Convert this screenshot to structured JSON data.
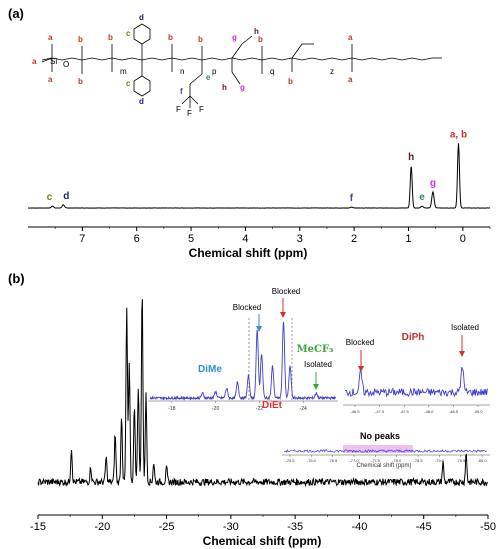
{
  "panel_a": {
    "label": "(a)",
    "structure": {
      "atom_labels": [
        "Si",
        "O",
        "m",
        "n",
        "p",
        "q",
        "z",
        "F"
      ],
      "position_letters": [
        "a",
        "b",
        "c",
        "d",
        "e",
        "f",
        "g",
        "h"
      ]
    }
  },
  "panel_b": {
    "label": "(b)"
  },
  "colors": {
    "a": "#c0392b",
    "b": "#c0392b",
    "c": "#808000",
    "d": "#1a237e",
    "e": "#2e8b57",
    "f": "#4b3f9e",
    "g": "#cc33cc",
    "h": "#5b1a1a",
    "dime": "#2f8fd0",
    "diet": "#e03030",
    "mecf3": "#3aa63a",
    "diph": "#c03030",
    "spectrum_blue": "#3f3fd0",
    "arrow_red": "#d03030",
    "arrow_blue": "#2f8fd0",
    "arrow_green": "#3aa63a"
  },
  "chart_data": [
    {
      "id": "1h-nmr",
      "type": "line",
      "xlabel": "Chemical shift (ppm)",
      "x_reversed": true,
      "xlim": [
        8.0,
        -0.5
      ],
      "xticks": [
        7,
        6,
        5,
        4,
        3,
        2,
        1,
        0
      ],
      "peaks": [
        {
          "label": "c",
          "x": 7.55,
          "height": 0.03
        },
        {
          "label": "d",
          "x": 7.35,
          "height": 0.05
        },
        {
          "label": "f",
          "x": 2.05,
          "height": 0.015
        },
        {
          "label": "h",
          "x": 0.95,
          "height": 0.65
        },
        {
          "label": "e",
          "x": 0.75,
          "height": 0.03
        },
        {
          "label": "g",
          "x": 0.55,
          "height": 0.25
        },
        {
          "label": "a, b",
          "x": 0.08,
          "height": 1.0
        }
      ]
    },
    {
      "id": "29si-nmr",
      "type": "line",
      "xlabel": "Chemical shift (ppm)",
      "x_reversed": true,
      "xlim": [
        -15,
        -50
      ],
      "xticks": [
        -15,
        -20,
        -25,
        -30,
        -35,
        -40,
        -45,
        -50
      ],
      "peaks": [
        {
          "x": -17.6,
          "height": 0.18
        },
        {
          "x": -19.1,
          "height": 0.08
        },
        {
          "x": -20.3,
          "height": 0.13
        },
        {
          "x": -21.0,
          "height": 0.25
        },
        {
          "x": -21.5,
          "height": 0.35
        },
        {
          "x": -21.9,
          "height": 0.9
        },
        {
          "x": -22.1,
          "height": 0.6
        },
        {
          "x": -22.5,
          "height": 0.4
        },
        {
          "x": -22.8,
          "height": 0.5
        },
        {
          "x": -23.1,
          "height": 1.0
        },
        {
          "x": -23.4,
          "height": 0.45
        },
        {
          "x": -24.0,
          "height": 0.1
        },
        {
          "x": -25.0,
          "height": 0.07
        },
        {
          "x": -46.5,
          "height": 0.1
        },
        {
          "x": -48.3,
          "height": 0.15
        }
      ],
      "insets": [
        {
          "id": "dime-diet-inset",
          "labels": {
            "dime": "DiMe",
            "diet": "DiEt",
            "mecf3": "MeCF₃",
            "blocked1": "Blocked",
            "blocked2": "Blocked",
            "isolated": "Isolated"
          },
          "xlim": [
            -17,
            -25.5
          ],
          "xticks": [
            "-18",
            "-20",
            "-22",
            "-24"
          ]
        },
        {
          "id": "diph-inset",
          "labels": {
            "diph": "DiPh",
            "blocked": "Blocked",
            "isolated": "Isolated"
          },
          "xticks": [
            "-46.5",
            "-47.0",
            "-47.5",
            "-48.0",
            "-48.5",
            "-49.0"
          ]
        },
        {
          "id": "no-peaks-inset",
          "labels": {
            "title": "No peaks",
            "axis_label": "Chemical shift (ppm)"
          },
          "xticks": [
            "-75.5",
            "-76.0",
            "-76.5",
            "-77.0",
            "-77.5",
            "-78.0",
            "-78.5",
            "-79.0",
            "-79.5",
            "-80.0"
          ]
        }
      ]
    }
  ]
}
